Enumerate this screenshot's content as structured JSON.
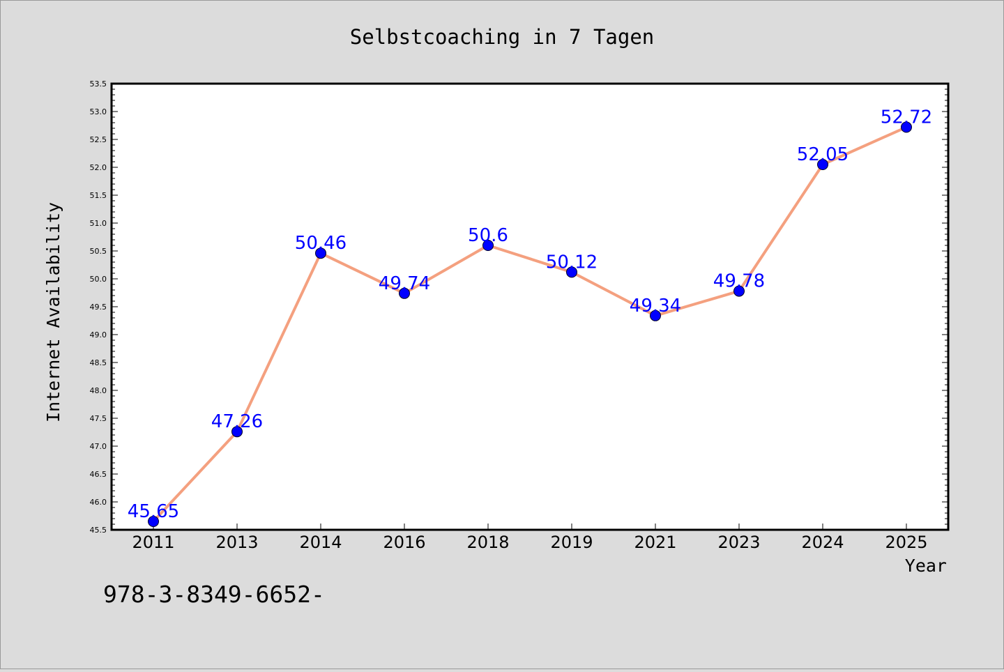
{
  "chart_data": {
    "type": "line",
    "title": "Selbstcoaching in 7 Tagen",
    "xlabel": "Year",
    "ylabel": "Internet Availability",
    "categories": [
      "2011",
      "2013",
      "2014",
      "2016",
      "2018",
      "2019",
      "2021",
      "2023",
      "2024",
      "2025"
    ],
    "series": [
      {
        "values": [
          45.65,
          47.26,
          50.46,
          49.74,
          50.6,
          50.12,
          49.34,
          49.78,
          52.05,
          52.72
        ],
        "line_color": "#f4a07f",
        "marker_color": "#0000ff"
      }
    ],
    "ylim": [
      45.5,
      53.5
    ],
    "yticks": [
      "45.5",
      "46.0",
      "46.5",
      "47.0",
      "47.5",
      "48.0",
      "48.5",
      "49.0",
      "49.5",
      "50.0",
      "50.5",
      "51.0",
      "51.5",
      "52.0",
      "52.5",
      "53.0",
      "53.5"
    ],
    "data_labels": [
      "45.65",
      "47.26",
      "50.46",
      "49.74",
      "50.6",
      "50.12",
      "49.34",
      "49.78",
      "52.05",
      "52.72"
    ],
    "grid": false,
    "legend": "none",
    "background_color": "#dcdcdc",
    "plot_background_color": "#ffffff"
  },
  "footer_text": "978-3-8349-6652-"
}
